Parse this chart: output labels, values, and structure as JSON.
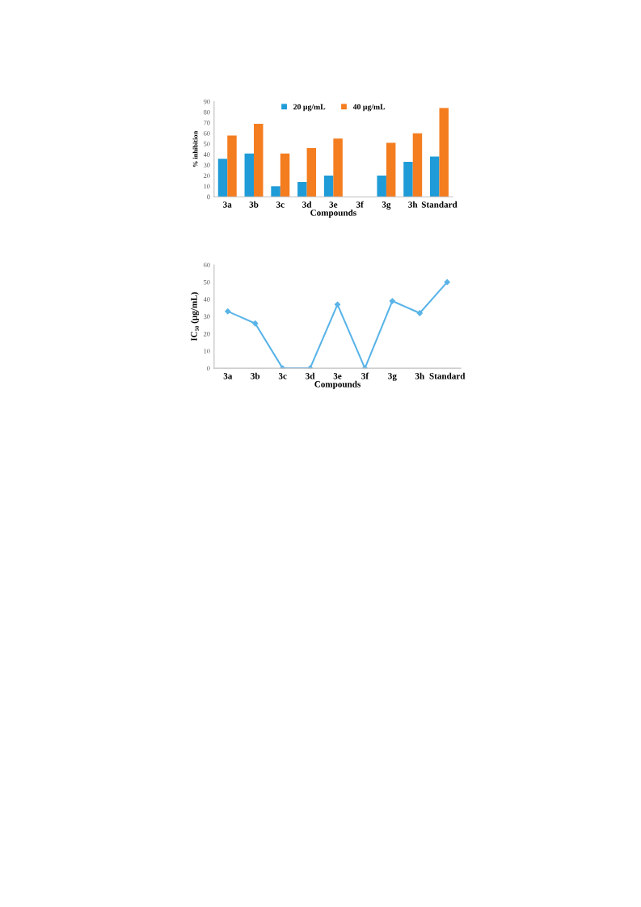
{
  "chart_data": [
    {
      "type": "bar",
      "xlabel": "Compounds",
      "ylabel": "% inhibition",
      "categories": [
        "3a",
        "3b",
        "3c",
        "3d",
        "3e",
        "3f",
        "3g",
        "3h",
        "Standard"
      ],
      "series": [
        {
          "name": "20 µg/mL",
          "color": "#1f9bd7",
          "values": [
            36,
            41,
            10,
            14,
            20,
            0,
            20,
            33,
            38
          ]
        },
        {
          "name": "40 µg/mL",
          "color": "#f47d20",
          "values": [
            58,
            69,
            41,
            46,
            55,
            0,
            51,
            60,
            84
          ]
        }
      ],
      "ylim": [
        0,
        90
      ],
      "yticks": [
        0,
        10,
        20,
        30,
        40,
        50,
        60,
        70,
        80,
        90
      ],
      "grid": false,
      "legend": "top"
    },
    {
      "type": "line",
      "xlabel": "Compounds",
      "ylabel": "IC₅₀ (µg/mL)",
      "categories": [
        "3a",
        "3b",
        "3c",
        "3d",
        "3e",
        "3f",
        "3g",
        "3h",
        "Standard"
      ],
      "series": [
        {
          "color": "#5ab4e8",
          "values": [
            33,
            26,
            0,
            0,
            37,
            0,
            39,
            32,
            50
          ]
        }
      ],
      "ylim": [
        0,
        60
      ],
      "yticks": [
        0,
        10,
        20,
        30,
        40,
        50,
        60
      ],
      "grid": false,
      "marker": "diamond",
      "line_style": "solid"
    }
  ]
}
